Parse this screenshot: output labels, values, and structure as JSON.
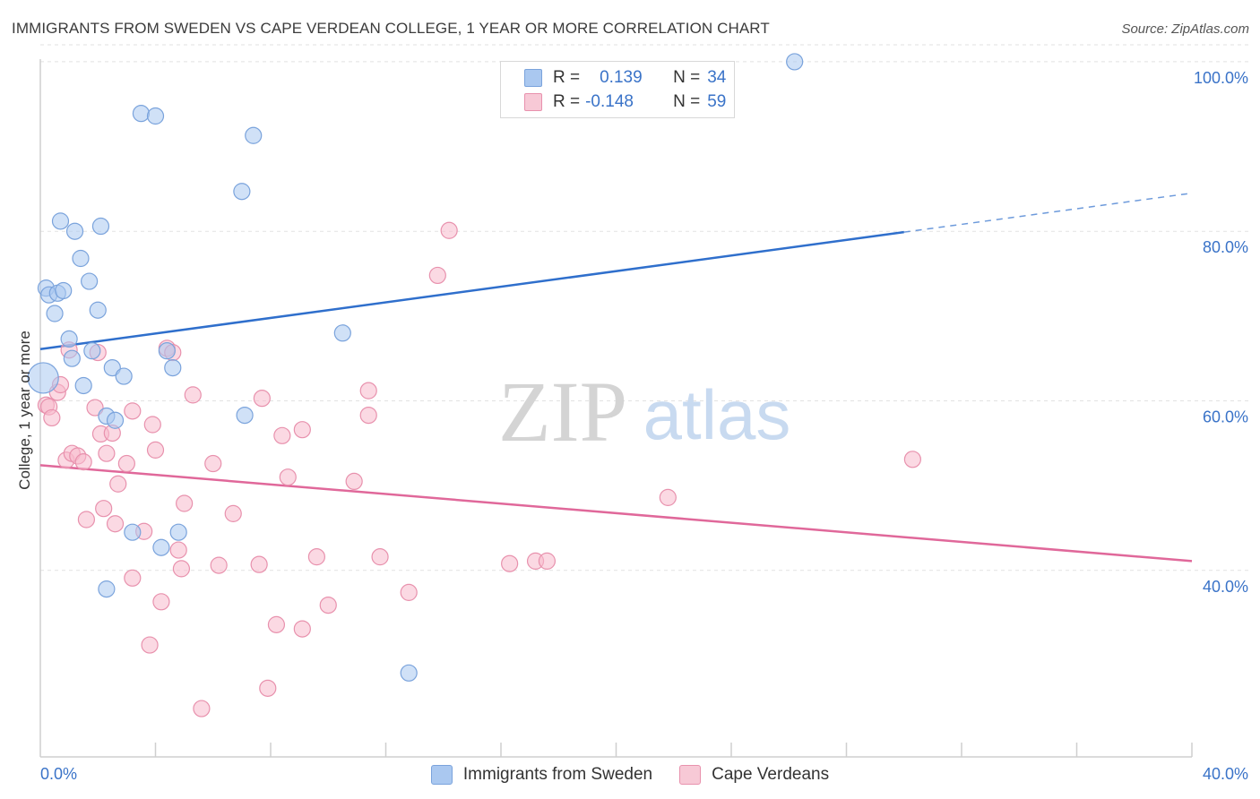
{
  "header": {
    "title": "IMMIGRANTS FROM SWEDEN VS CAPE VERDEAN COLLEGE, 1 YEAR OR MORE CORRELATION CHART",
    "source": "Source: ZipAtlas.com"
  },
  "watermark": {
    "zip": "ZIP",
    "atlas": "atlas"
  },
  "stats_legend": {
    "row1": {
      "r_label": "R =",
      "r_value": "0.139",
      "n_label": "N =",
      "n_value": "34"
    },
    "row2": {
      "r_label": "R =",
      "r_value": "-0.148",
      "n_label": "N =",
      "n_value": "59"
    }
  },
  "chart_data": {
    "type": "scatter",
    "title": "IMMIGRANTS FROM SWEDEN VS CAPE VERDEAN COLLEGE, 1 YEAR OR MORE CORRELATION CHART",
    "xlabel": "",
    "ylabel": "College, 1 year or more",
    "xlim": [
      0,
      40
    ],
    "ylim": [
      18,
      102
    ],
    "x_tick_labels": [
      "0.0%",
      "40.0%"
    ],
    "y_ticks": [
      40,
      60,
      80,
      100
    ],
    "y_tick_labels": [
      "40.0%",
      "60.0%",
      "80.0%",
      "100.0%"
    ],
    "grid": true,
    "legend_position": "bottom",
    "colors": {
      "sweden_fill": "#aac8f0",
      "sweden_stroke": "#7aa3dc",
      "sweden_line": "#2f6fcc",
      "cape_fill": "#f7b9cc",
      "cape_stroke": "#e891ad",
      "cape_line": "#e0689a",
      "tick_text": "#3a73c8"
    },
    "series": [
      {
        "name": "Immigrants from Sweden",
        "points": [
          [
            0.1,
            62.7
          ],
          [
            0.2,
            73.3
          ],
          [
            0.3,
            72.5
          ],
          [
            0.5,
            70.3
          ],
          [
            0.7,
            81.2
          ],
          [
            0.6,
            72.7
          ],
          [
            0.8,
            73.0
          ],
          [
            1.0,
            67.3
          ],
          [
            1.2,
            80.0
          ],
          [
            1.1,
            65.0
          ],
          [
            1.4,
            76.8
          ],
          [
            1.5,
            61.8
          ],
          [
            1.7,
            74.1
          ],
          [
            1.8,
            65.9
          ],
          [
            2.0,
            70.7
          ],
          [
            2.1,
            80.6
          ],
          [
            2.3,
            58.2
          ],
          [
            2.5,
            63.9
          ],
          [
            2.6,
            57.7
          ],
          [
            2.9,
            62.9
          ],
          [
            3.2,
            44.5
          ],
          [
            3.5,
            93.9
          ],
          [
            4.0,
            93.6
          ],
          [
            4.2,
            42.7
          ],
          [
            4.4,
            65.9
          ],
          [
            4.6,
            63.9
          ],
          [
            4.8,
            44.5
          ],
          [
            7.0,
            84.7
          ],
          [
            7.4,
            91.3
          ],
          [
            7.1,
            58.3
          ],
          [
            10.5,
            68.0
          ],
          [
            12.8,
            27.9
          ],
          [
            26.2,
            100.0
          ],
          [
            2.3,
            37.8
          ]
        ],
        "trend": {
          "x": [
            0,
            30
          ],
          "y": [
            66.1,
            79.9
          ],
          "dashed_to": [
            40,
            84.5
          ]
        }
      },
      {
        "name": "Cape Verdeans",
        "points": [
          [
            0.2,
            59.5
          ],
          [
            0.3,
            59.3
          ],
          [
            0.4,
            58.0
          ],
          [
            0.6,
            61.0
          ],
          [
            0.7,
            61.9
          ],
          [
            0.9,
            53.0
          ],
          [
            1.0,
            66.0
          ],
          [
            1.1,
            53.8
          ],
          [
            1.3,
            53.5
          ],
          [
            1.5,
            52.8
          ],
          [
            1.6,
            46.0
          ],
          [
            1.9,
            59.2
          ],
          [
            2.0,
            65.7
          ],
          [
            2.1,
            56.1
          ],
          [
            2.2,
            47.3
          ],
          [
            2.3,
            53.8
          ],
          [
            2.5,
            56.2
          ],
          [
            2.6,
            45.5
          ],
          [
            2.7,
            50.2
          ],
          [
            3.0,
            52.6
          ],
          [
            3.2,
            39.1
          ],
          [
            3.2,
            58.8
          ],
          [
            3.6,
            44.6
          ],
          [
            3.8,
            31.2
          ],
          [
            3.9,
            57.2
          ],
          [
            4.0,
            54.2
          ],
          [
            4.2,
            36.3
          ],
          [
            4.4,
            66.2
          ],
          [
            4.6,
            65.7
          ],
          [
            4.8,
            42.4
          ],
          [
            4.9,
            40.2
          ],
          [
            5.0,
            47.9
          ],
          [
            5.3,
            60.7
          ],
          [
            5.6,
            23.7
          ],
          [
            6.0,
            52.6
          ],
          [
            6.2,
            40.6
          ],
          [
            6.7,
            46.7
          ],
          [
            7.6,
            40.7
          ],
          [
            7.7,
            60.3
          ],
          [
            7.9,
            26.1
          ],
          [
            8.2,
            33.6
          ],
          [
            8.4,
            55.9
          ],
          [
            8.6,
            51.0
          ],
          [
            9.1,
            56.6
          ],
          [
            9.1,
            33.1
          ],
          [
            9.6,
            41.6
          ],
          [
            10.0,
            35.9
          ],
          [
            10.9,
            50.5
          ],
          [
            11.4,
            61.2
          ],
          [
            11.4,
            58.3
          ],
          [
            11.8,
            41.6
          ],
          [
            12.8,
            37.4
          ],
          [
            13.8,
            74.8
          ],
          [
            14.2,
            80.1
          ],
          [
            16.3,
            40.8
          ],
          [
            17.2,
            41.1
          ],
          [
            17.6,
            41.1
          ],
          [
            21.8,
            48.6
          ],
          [
            30.3,
            53.1
          ]
        ],
        "trend": {
          "x": [
            0,
            40
          ],
          "y": [
            52.4,
            41.1
          ]
        }
      }
    ]
  },
  "bottom_legend": {
    "item1": "Immigrants from Sweden",
    "item2": "Cape Verdeans"
  }
}
